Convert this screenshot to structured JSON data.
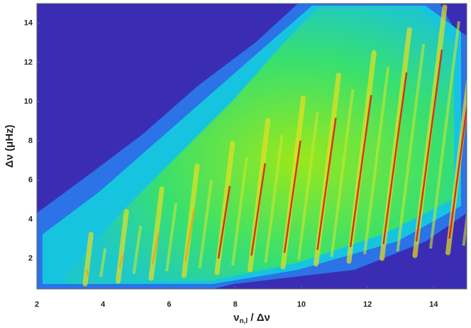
{
  "chart_data": {
    "type": "heatmap",
    "xlabel": {
      "symbol": "ν",
      "subscript": "n,l",
      "rest": " / Δν"
    },
    "ylabel": "Δν (μHz)",
    "xlim": [
      2,
      15
    ],
    "xticks": [
      2,
      4,
      6,
      8,
      10,
      12,
      14
    ],
    "ylim": [
      0.45,
      15
    ],
    "yticks": [
      2,
      4,
      6,
      8,
      10,
      12,
      14
    ]
  }
}
